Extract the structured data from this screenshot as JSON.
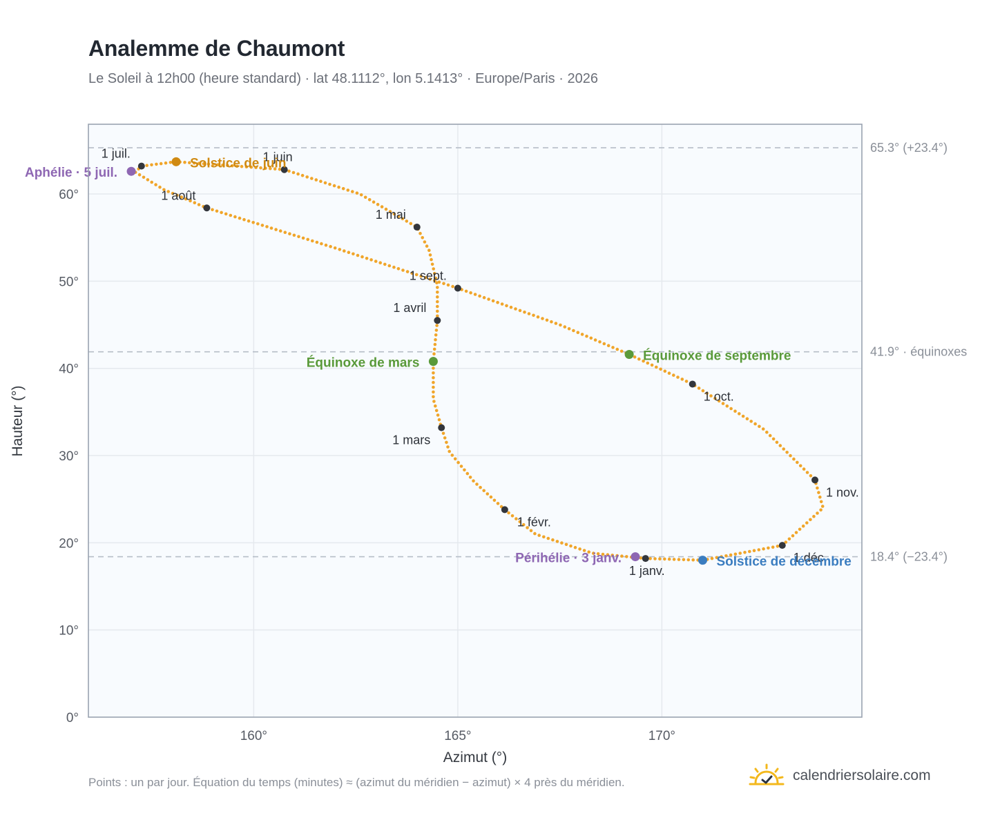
{
  "title": "Analemme de Chaumont",
  "subtitle": "Le Soleil à 12h00 (heure standard) · lat 48.1112°, lon 5.1413° · Europe/Paris · 2026",
  "footnote": "Points : un par jour. Équation du temps (minutes) ≈ (azimut du méridien − azimut) × 4 près du méridien.",
  "brand": {
    "text": "calendriersolaire.com",
    "icon": "sun-check-icon",
    "color": "#f3b81c"
  },
  "colors": {
    "analemma": "#f0a52a",
    "month_point": "#33363c",
    "solstice_june": "#d08a12",
    "solstice_december": "#3b7dc0",
    "equinox": "#5a9a3a",
    "perihelion_aphelion": "#8e67b3",
    "plot_bg": "#f8fbfe",
    "grid": "#e5e9ee",
    "frame": "#9aa3b0",
    "ref_line": "#b5bdc7"
  },
  "chart_data": {
    "type": "scatter",
    "xlabel": "Azimut (°)",
    "ylabel": "Hauteur (°)",
    "xlim": [
      155.95,
      174.9
    ],
    "ylim": [
      0,
      68
    ],
    "x_ticks": [
      160,
      165,
      170
    ],
    "x_tick_labels": [
      "160°",
      "165°",
      "170°"
    ],
    "y_ticks": [
      0,
      10,
      20,
      30,
      40,
      50,
      60
    ],
    "y_tick_labels": [
      "0°",
      "10°",
      "20°",
      "30°",
      "40°",
      "50°",
      "60°"
    ],
    "grid": true,
    "reference_lines": [
      {
        "y": 65.3,
        "label": "65.3° (+23.4°)"
      },
      {
        "y": 41.9,
        "label": "41.9° · équinoxes"
      },
      {
        "y": 18.4,
        "label": "18.4° (−23.4°)"
      }
    ],
    "analemma_waypoints": [
      {
        "x": 169.6,
        "y": 18.2
      },
      {
        "x": 168.3,
        "y": 18.8
      },
      {
        "x": 166.9,
        "y": 21.0
      },
      {
        "x": 166.15,
        "y": 23.8
      },
      {
        "x": 165.4,
        "y": 27.0
      },
      {
        "x": 164.8,
        "y": 30.4
      },
      {
        "x": 164.6,
        "y": 33.2
      },
      {
        "x": 164.4,
        "y": 36.5
      },
      {
        "x": 164.4,
        "y": 40.8
      },
      {
        "x": 164.5,
        "y": 45.5
      },
      {
        "x": 164.5,
        "y": 49.5
      },
      {
        "x": 164.3,
        "y": 53.5
      },
      {
        "x": 164.0,
        "y": 56.2
      },
      {
        "x": 162.6,
        "y": 60.0
      },
      {
        "x": 160.75,
        "y": 62.8
      },
      {
        "x": 158.1,
        "y": 63.7
      },
      {
        "x": 157.25,
        "y": 63.2
      },
      {
        "x": 157.1,
        "y": 62.5
      },
      {
        "x": 157.8,
        "y": 60.5
      },
      {
        "x": 158.85,
        "y": 58.4
      },
      {
        "x": 162.0,
        "y": 53.8
      },
      {
        "x": 165.0,
        "y": 49.2
      },
      {
        "x": 167.5,
        "y": 45.0
      },
      {
        "x": 169.2,
        "y": 41.6
      },
      {
        "x": 170.75,
        "y": 38.2
      },
      {
        "x": 172.5,
        "y": 33.0
      },
      {
        "x": 173.75,
        "y": 27.2
      },
      {
        "x": 173.95,
        "y": 24.0
      },
      {
        "x": 172.95,
        "y": 19.7
      },
      {
        "x": 171.0,
        "y": 18.0
      },
      {
        "x": 169.6,
        "y": 18.2
      }
    ],
    "month_points": [
      {
        "label": "1 janv.",
        "x": 169.6,
        "y": 18.2,
        "anchor": "middle",
        "dx": 2,
        "dy": 24
      },
      {
        "label": "1 févr.",
        "x": 166.15,
        "y": 23.8,
        "anchor": "start",
        "dx": 18,
        "dy": 24
      },
      {
        "label": "1 mars",
        "x": 164.6,
        "y": 33.2,
        "anchor": "end",
        "dx": -16,
        "dy": 24
      },
      {
        "label": "1 avril",
        "x": 164.5,
        "y": 45.5,
        "anchor": "end",
        "dx": -16,
        "dy": -12
      },
      {
        "label": "1 mai",
        "x": 164.0,
        "y": 56.2,
        "anchor": "end",
        "dx": -16,
        "dy": -12
      },
      {
        "label": "1 juin",
        "x": 160.75,
        "y": 62.8,
        "anchor": "end",
        "dx": 12,
        "dy": -12
      },
      {
        "label": "1 juil.",
        "x": 157.25,
        "y": 63.2,
        "anchor": "end",
        "dx": -16,
        "dy": -12
      },
      {
        "label": "1 août",
        "x": 158.85,
        "y": 58.4,
        "anchor": "end",
        "dx": -16,
        "dy": -12
      },
      {
        "label": "1 sept.",
        "x": 165.0,
        "y": 49.2,
        "anchor": "end",
        "dx": -16,
        "dy": -12
      },
      {
        "label": "1 oct.",
        "x": 170.75,
        "y": 38.2,
        "anchor": "start",
        "dx": 16,
        "dy": 24
      },
      {
        "label": "1 nov.",
        "x": 173.75,
        "y": 27.2,
        "anchor": "start",
        "dx": 16,
        "dy": 24
      },
      {
        "label": "1 déc.",
        "x": 172.95,
        "y": 19.7,
        "anchor": "start",
        "dx": 16,
        "dy": 24
      }
    ],
    "events": [
      {
        "label": "Solstice de juin",
        "x": 158.1,
        "y": 63.7,
        "color_key": "solstice_june",
        "anchor": "start",
        "dx": 20,
        "dy": 8
      },
      {
        "label": "Aphélie · 5 juil.",
        "x": 157.0,
        "y": 62.6,
        "color_key": "perihelion_aphelion",
        "anchor": "end",
        "dx": -20,
        "dy": 8
      },
      {
        "label": "Équinoxe de mars",
        "x": 164.4,
        "y": 40.8,
        "color_key": "equinox",
        "anchor": "end",
        "dx": -20,
        "dy": 8
      },
      {
        "label": "Équinoxe de septembre",
        "x": 169.2,
        "y": 41.6,
        "color_key": "equinox",
        "anchor": "start",
        "dx": 20,
        "dy": 8
      },
      {
        "label": "Périhélie · 3 janv.",
        "x": 169.35,
        "y": 18.4,
        "color_key": "perihelion_aphelion",
        "anchor": "end",
        "dx": -20,
        "dy": 8
      },
      {
        "label": "Solstice de décembre",
        "x": 171.0,
        "y": 18.0,
        "color_key": "solstice_december",
        "anchor": "start",
        "dx": 20,
        "dy": 8
      }
    ]
  }
}
